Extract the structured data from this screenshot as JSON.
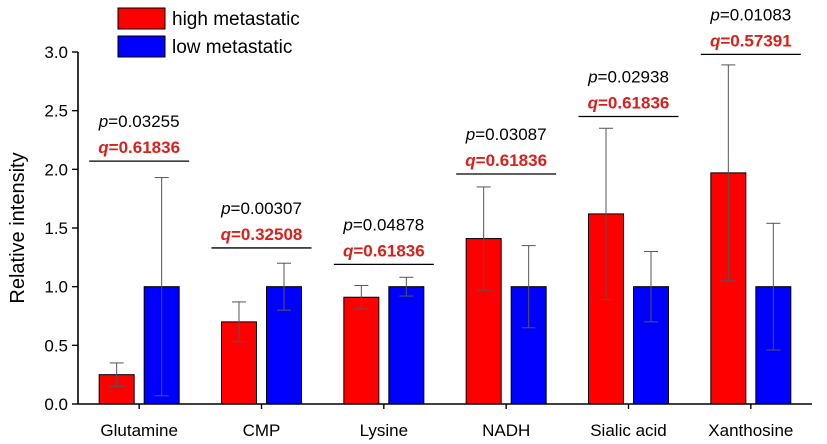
{
  "chart_data": {
    "type": "bar",
    "title": "",
    "xlabel": "",
    "ylabel": "Relative intensity",
    "ylim": [
      0,
      3.0
    ],
    "yticks": [
      "0.0",
      "0.5",
      "1.0",
      "1.5",
      "2.0",
      "2.5",
      "3.0"
    ],
    "categories": [
      "Glutamine",
      "CMP",
      "Lysine",
      "NADH",
      "Sialic acid",
      "Xanthosine"
    ],
    "series": [
      {
        "name": "high metastatic",
        "color": "#ff0000",
        "values": [
          0.25,
          0.7,
          0.91,
          1.41,
          1.62,
          1.97
        ],
        "errors": [
          0.1,
          0.17,
          0.1,
          0.44,
          0.73,
          0.92
        ]
      },
      {
        "name": "low metastatic",
        "color": "#0000ff",
        "values": [
          1.0,
          1.0,
          1.0,
          1.0,
          1.0,
          1.0
        ],
        "errors": [
          0.93,
          0.2,
          0.08,
          0.35,
          0.3,
          0.54
        ]
      }
    ],
    "annotations": [
      {
        "category": "Glutamine",
        "p_label": "p",
        "p_value": "=0.03255",
        "q_label": "q",
        "q_value": "=0.61836",
        "level": 2.07
      },
      {
        "category": "CMP",
        "p_label": "p",
        "p_value": "=0.00307",
        "q_label": "q",
        "q_value": "=0.32508",
        "level": 1.33
      },
      {
        "category": "Lysine",
        "p_label": "p",
        "p_value": "=0.04878",
        "q_label": "q",
        "q_value": "=0.61836",
        "level": 1.19
      },
      {
        "category": "NADH",
        "p_label": "p",
        "p_value": "=0.03087",
        "q_label": "q",
        "q_value": "=0.61836",
        "level": 1.96
      },
      {
        "category": "Sialic acid",
        "p_label": "p",
        "p_value": "=0.02938",
        "q_label": "q",
        "q_value": "=0.61836",
        "level": 2.45
      },
      {
        "category": "Xanthosine",
        "p_label": "p",
        "p_value": "=0.01083",
        "q_label": "q",
        "q_value": "=0.57391",
        "level": 2.98
      }
    ],
    "legend": "top-left"
  }
}
